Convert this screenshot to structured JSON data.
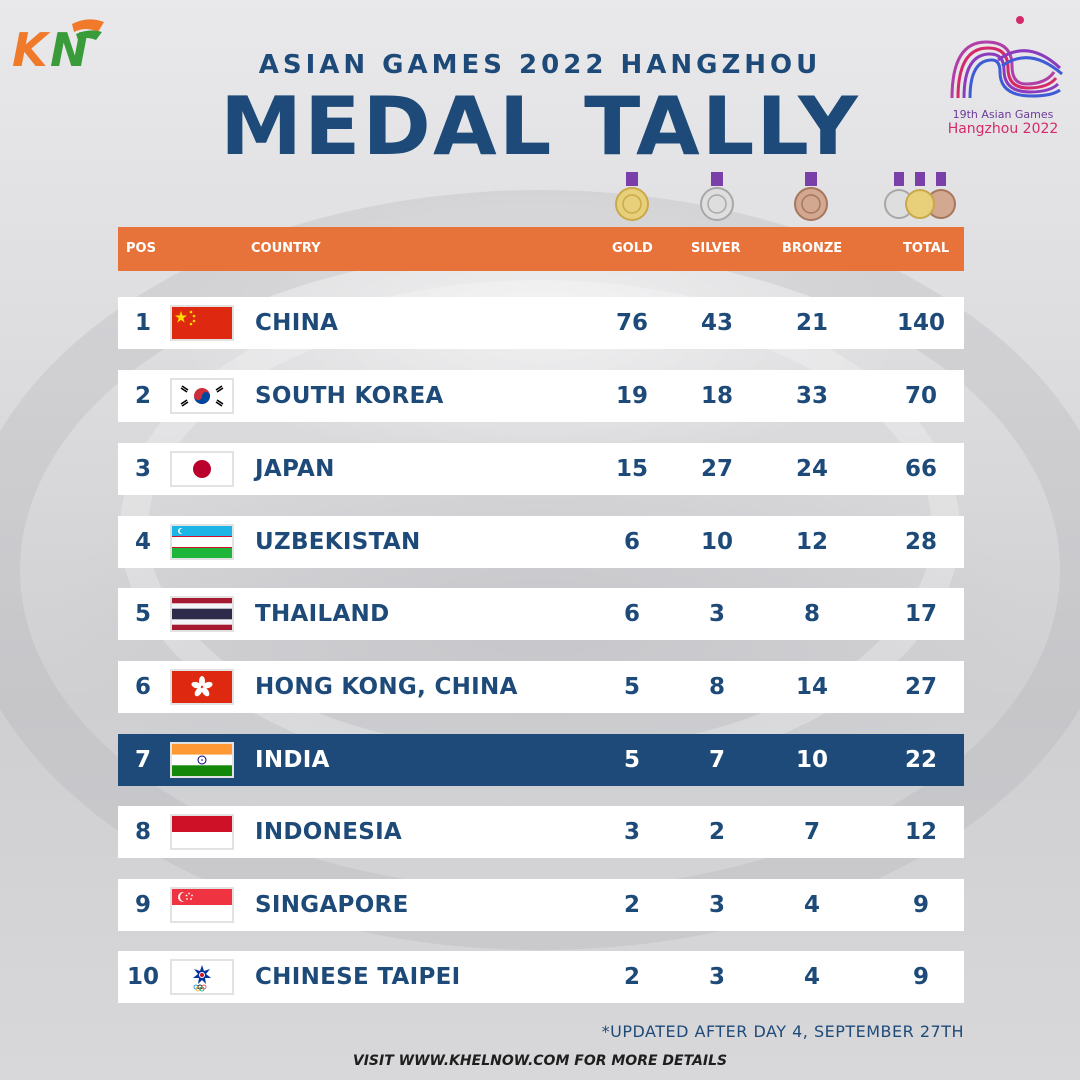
{
  "brand": {
    "logo_text": "KN"
  },
  "title": {
    "subtitle": "ASIAN GAMES 2022 HANGZHOU",
    "main": "MEDAL TALLY"
  },
  "event_logo": {
    "line1": "19th Asian Games",
    "line2": "Hangzhou 2022"
  },
  "columns": {
    "pos": "POS",
    "country": "COUNTRY",
    "gold": "GOLD",
    "silver": "SILVER",
    "bronze": "BRONZE",
    "total": "TOTAL"
  },
  "rows": [
    {
      "pos": "1",
      "country": "CHINA",
      "gold": "76",
      "silver": "43",
      "bronze": "21",
      "total": "140",
      "flag": "china-flag"
    },
    {
      "pos": "2",
      "country": "SOUTH KOREA",
      "gold": "19",
      "silver": "18",
      "bronze": "33",
      "total": "70",
      "flag": "south-korea-flag"
    },
    {
      "pos": "3",
      "country": "JAPAN",
      "gold": "15",
      "silver": "27",
      "bronze": "24",
      "total": "66",
      "flag": "japan-flag"
    },
    {
      "pos": "4",
      "country": "UZBEKISTAN",
      "gold": "6",
      "silver": "10",
      "bronze": "12",
      "total": "28",
      "flag": "uzbekistan-flag"
    },
    {
      "pos": "5",
      "country": "THAILAND",
      "gold": "6",
      "silver": "3",
      "bronze": "8",
      "total": "17",
      "flag": "thailand-flag"
    },
    {
      "pos": "6",
      "country": "HONG KONG, CHINA",
      "gold": "5",
      "silver": "8",
      "bronze": "14",
      "total": "27",
      "flag": "hong-kong-flag"
    },
    {
      "pos": "7",
      "country": "INDIA",
      "gold": "5",
      "silver": "7",
      "bronze": "10",
      "total": "22",
      "flag": "india-flag",
      "highlighted": true
    },
    {
      "pos": "8",
      "country": "INDONESIA",
      "gold": "3",
      "silver": "2",
      "bronze": "7",
      "total": "12",
      "flag": "indonesia-flag"
    },
    {
      "pos": "9",
      "country": "SINGAPORE",
      "gold": "2",
      "silver": "3",
      "bronze": "4",
      "total": "9",
      "flag": "singapore-flag"
    },
    {
      "pos": "10",
      "country": "CHINESE TAIPEI",
      "gold": "2",
      "silver": "3",
      "bronze": "4",
      "total": "9",
      "flag": "chinese-taipei-flag"
    }
  ],
  "footnote": "*UPDATED AFTER DAY 4, SEPTEMBER 27TH",
  "visit_text": "VISIT WWW.KHELNOW.COM FOR MORE DETAILS",
  "colors": {
    "primary_blue": "#1d4a78",
    "accent_orange": "#e8733a",
    "highlight_row": "#1d4a78"
  }
}
